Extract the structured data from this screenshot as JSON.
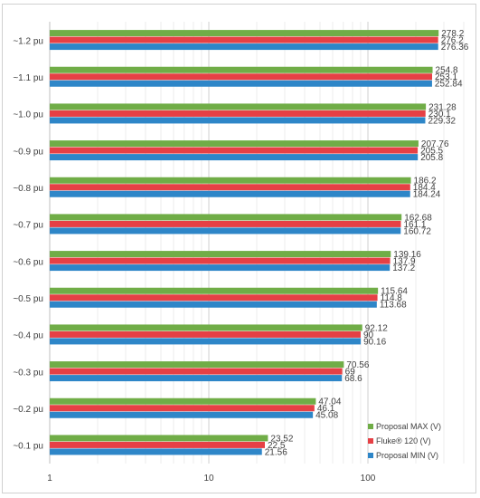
{
  "chart_data": {
    "type": "bar",
    "orientation": "horizontal",
    "x_scale": "log",
    "xlim": [
      1,
      400
    ],
    "x_ticks": [
      "1",
      "10",
      "100"
    ],
    "grid": "x-major-and-minor",
    "legend_position": "bottom-right",
    "categories": [
      "~0.1 pu",
      "~0.2 pu",
      "~0.3 pu",
      "~0.4 pu",
      "~0.5 pu",
      "~0.6 pu",
      "~0.7 pu",
      "~0.8 pu",
      "~0.9 pu",
      "~1.0 pu",
      "~1.1 pu",
      "~1.2 pu"
    ],
    "series": [
      {
        "name": "Proposal MAX (V)",
        "color": "#70AD47",
        "values": [
          23.52,
          47.04,
          70.56,
          92.12,
          115.64,
          139.16,
          162.68,
          186.2,
          207.76,
          231.28,
          254.8,
          278.2
        ]
      },
      {
        "name": "Fluke® 120 (V)",
        "color": "#E64045",
        "values": [
          22.5,
          46.1,
          69,
          90,
          114.8,
          137.9,
          161.1,
          184.4,
          205.5,
          230.1,
          253.1,
          276.2
        ]
      },
      {
        "name": "Proposal MIN (V)",
        "color": "#2E86C8",
        "values": [
          21.56,
          45.08,
          68.6,
          90.16,
          113.68,
          137.2,
          160.72,
          184.24,
          205.8,
          229.32,
          252.84,
          276.36
        ]
      }
    ],
    "data_labels": {
      "Proposal MAX (V)": [
        "23.52",
        "47.04",
        "70.56",
        "92.12",
        "115.64",
        "139.16",
        "162.68",
        "186.2",
        "207.76",
        "231.28",
        "254.8",
        "278.2"
      ],
      "Fluke® 120 (V)": [
        "22.5",
        "46.1",
        "69",
        "90",
        "114.8",
        "137.9",
        "161.1",
        "184.4",
        "205.5",
        "230.1",
        "253.1",
        "276.2"
      ],
      "Proposal MIN (V)": [
        "21.56",
        "45.08",
        "68.6",
        "90.16",
        "113.68",
        "137.2",
        "160.72",
        "184.24",
        "205.8",
        "229.32",
        "252.84",
        "276.36"
      ]
    }
  }
}
